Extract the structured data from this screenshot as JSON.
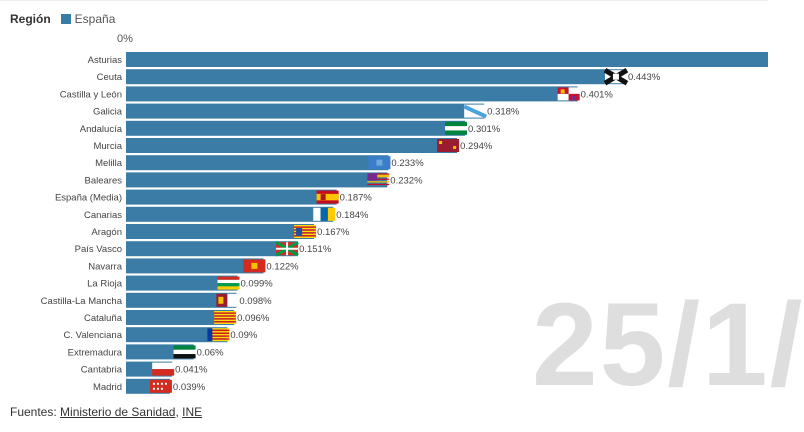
{
  "legend": {
    "title": "Región",
    "series_name": "España"
  },
  "watermark": "25/1/",
  "source": {
    "prefix": "Fuentes:",
    "link1": "Ministerio de Sanidad",
    "sep": ",",
    "link2": "INE"
  },
  "colors": {
    "bar": "#3a7ca5",
    "label": "#444444",
    "value": "#444444"
  },
  "chart_data": {
    "type": "bar",
    "orientation": "horizontal",
    "axis_label_zero": "0%",
    "full_bar_category": "Asturias",
    "categories": [
      "Asturias",
      "Ceuta",
      "Castilla y León",
      "Galicia",
      "Andalucía",
      "Murcia",
      "Melilla",
      "Baleares",
      "España (Media)",
      "Canarias",
      "Aragón",
      "País Vasco",
      "Navarra",
      "La Rioja",
      "Castilla-La Mancha",
      "Cataluña",
      "C. Valenciana",
      "Extremadura",
      "Cantabria",
      "Madrid"
    ],
    "values": [
      0.57,
      0.443,
      0.401,
      0.318,
      0.301,
      0.294,
      0.233,
      0.232,
      0.187,
      0.184,
      0.167,
      0.151,
      0.122,
      0.099,
      0.098,
      0.096,
      0.09,
      0.06,
      0.041,
      0.039
    ],
    "value_labels": [
      "",
      "0.443%",
      "0.401%",
      "0.318%",
      "0.301%",
      "0.294%",
      "0.233%",
      "0.232%",
      "0.187%",
      "0.184%",
      "0.167%",
      "0.151%",
      "0.122%",
      "0.099%",
      "0.098%",
      "0.096%",
      "0.09%",
      "0.06%",
      "0.041%",
      "0.039%"
    ],
    "flags": [
      "",
      "ceuta",
      "castilla-leon",
      "galicia",
      "andalucia",
      "murcia",
      "melilla",
      "baleares",
      "espana",
      "canarias",
      "aragon",
      "pais-vasco",
      "navarra",
      "la-rioja",
      "castilla-la-mancha",
      "cataluna",
      "c-valenciana",
      "extremadura",
      "cantabria",
      "madrid"
    ],
    "xlim": [
      0,
      0.57
    ]
  }
}
